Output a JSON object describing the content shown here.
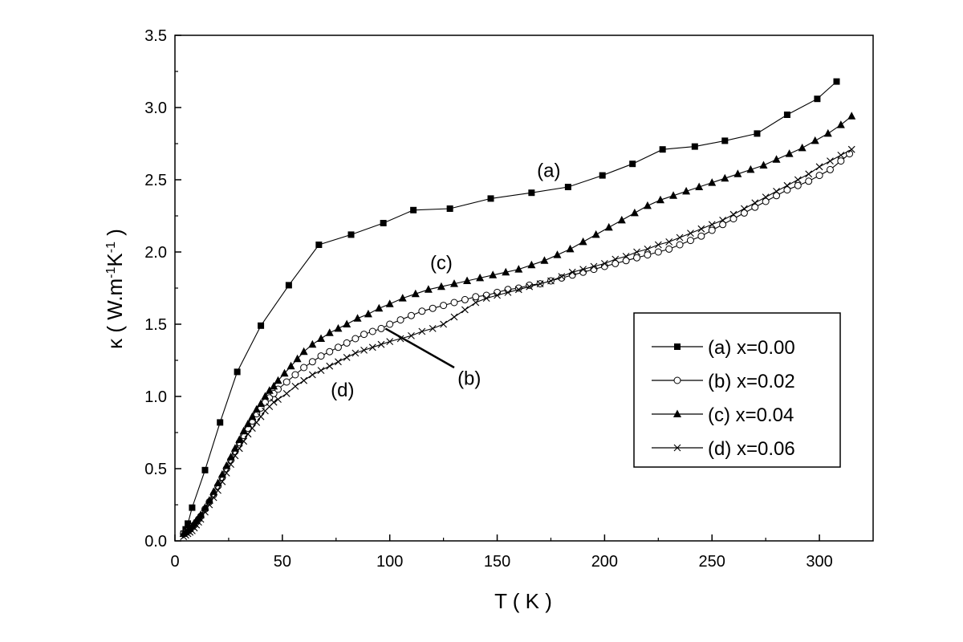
{
  "chart_data": {
    "type": "line",
    "xlabel": "T ( K )",
    "ylabel_main": "κ ( W.m",
    "ylabel_sup1": "-1",
    "ylabel_mid": "K",
    "ylabel_sup2": "-1",
    "ylabel_end": " )",
    "xlim": [
      0,
      325
    ],
    "ylim": [
      0,
      3.5
    ],
    "x_ticks": [
      0,
      50,
      100,
      150,
      200,
      250,
      300
    ],
    "y_ticks": [
      0.0,
      0.5,
      1.0,
      1.5,
      2.0,
      2.5,
      3.0,
      3.5
    ],
    "x_tick_labels": [
      "0",
      "50",
      "100",
      "150",
      "200",
      "250",
      "300"
    ],
    "y_tick_labels": [
      "0.0",
      "0.5",
      "1.0",
      "1.5",
      "2.0",
      "2.5",
      "3.0",
      "3.5"
    ],
    "grid": false,
    "legend_position": "right",
    "annotations": [
      {
        "text": "(a)",
        "x": 174,
        "y": 2.52
      },
      {
        "text": "(c)",
        "x": 124,
        "y": 1.88
      },
      {
        "text": "(b)",
        "x": 137,
        "y": 1.08
      },
      {
        "text": "(d)",
        "x": 78,
        "y": 1.0
      }
    ],
    "pointer_line": {
      "from": [
        98,
        1.47
      ],
      "to": [
        130,
        1.2
      ]
    },
    "series": [
      {
        "name": "(a) x=0.00",
        "marker": "square",
        "x": [
          4,
          5,
          6,
          8,
          14,
          21,
          29,
          40,
          53,
          67,
          82,
          97,
          111,
          128,
          147,
          166,
          183,
          199,
          213,
          227,
          242,
          256,
          271,
          285,
          299,
          308
        ],
        "y": [
          0.05,
          0.08,
          0.12,
          0.23,
          0.49,
          0.82,
          1.17,
          1.49,
          1.77,
          2.05,
          2.12,
          2.2,
          2.29,
          2.3,
          2.37,
          2.41,
          2.45,
          2.53,
          2.61,
          2.71,
          2.73,
          2.77,
          2.82,
          2.95,
          3.06,
          3.18
        ]
      },
      {
        "name": "(b) x=0.02",
        "marker": "circle",
        "x": [
          4,
          5,
          6,
          7,
          8,
          9,
          10,
          11,
          12,
          14,
          16,
          18,
          20,
          22,
          24,
          26,
          28,
          30,
          32,
          34,
          36,
          38,
          40,
          42,
          44,
          46,
          48,
          52,
          56,
          60,
          64,
          68,
          72,
          76,
          80,
          84,
          88,
          92,
          96,
          100,
          105,
          110,
          115,
          120,
          125,
          130,
          135,
          140,
          145,
          150,
          155,
          160,
          165,
          170,
          175,
          180,
          185,
          190,
          195,
          200,
          205,
          210,
          215,
          220,
          225,
          230,
          235,
          240,
          245,
          250,
          255,
          260,
          265,
          270,
          275,
          280,
          285,
          290,
          295,
          300,
          305,
          310,
          314
        ],
        "y": [
          0.05,
          0.06,
          0.07,
          0.08,
          0.1,
          0.11,
          0.13,
          0.15,
          0.17,
          0.22,
          0.27,
          0.32,
          0.38,
          0.44,
          0.5,
          0.56,
          0.62,
          0.68,
          0.73,
          0.78,
          0.83,
          0.88,
          0.92,
          0.96,
          0.99,
          1.02,
          1.05,
          1.1,
          1.15,
          1.2,
          1.24,
          1.28,
          1.31,
          1.34,
          1.37,
          1.4,
          1.43,
          1.45,
          1.47,
          1.5,
          1.53,
          1.56,
          1.59,
          1.61,
          1.63,
          1.65,
          1.67,
          1.69,
          1.7,
          1.72,
          1.74,
          1.75,
          1.77,
          1.78,
          1.8,
          1.82,
          1.84,
          1.86,
          1.88,
          1.9,
          1.92,
          1.94,
          1.96,
          1.98,
          2.0,
          2.02,
          2.05,
          2.08,
          2.11,
          2.15,
          2.19,
          2.23,
          2.27,
          2.31,
          2.35,
          2.39,
          2.43,
          2.46,
          2.49,
          2.53,
          2.57,
          2.63,
          2.68
        ]
      },
      {
        "name": "(c) x=0.04",
        "marker": "triangle",
        "x": [
          4,
          5,
          6,
          7,
          8,
          9,
          10,
          11,
          12,
          14,
          16,
          18,
          20,
          22,
          24,
          26,
          28,
          30,
          32,
          34,
          36,
          38,
          40,
          42,
          44,
          46,
          48,
          51,
          54,
          57,
          60,
          64,
          68,
          72,
          76,
          80,
          85,
          90,
          95,
          100,
          106,
          112,
          118,
          124,
          130,
          136,
          142,
          148,
          154,
          160,
          166,
          172,
          178,
          184,
          190,
          196,
          202,
          208,
          214,
          220,
          226,
          232,
          238,
          244,
          250,
          256,
          262,
          268,
          274,
          280,
          286,
          292,
          298,
          304,
          310,
          315
        ],
        "y": [
          0.05,
          0.06,
          0.07,
          0.09,
          0.1,
          0.12,
          0.14,
          0.16,
          0.18,
          0.23,
          0.28,
          0.34,
          0.4,
          0.46,
          0.52,
          0.58,
          0.64,
          0.7,
          0.76,
          0.81,
          0.86,
          0.91,
          0.95,
          1.0,
          1.04,
          1.07,
          1.11,
          1.16,
          1.21,
          1.26,
          1.31,
          1.36,
          1.4,
          1.44,
          1.47,
          1.5,
          1.54,
          1.57,
          1.61,
          1.64,
          1.68,
          1.71,
          1.74,
          1.76,
          1.78,
          1.8,
          1.82,
          1.84,
          1.86,
          1.88,
          1.91,
          1.94,
          1.98,
          2.02,
          2.07,
          2.12,
          2.17,
          2.22,
          2.27,
          2.32,
          2.36,
          2.39,
          2.42,
          2.45,
          2.48,
          2.51,
          2.54,
          2.57,
          2.6,
          2.64,
          2.68,
          2.72,
          2.77,
          2.82,
          2.88,
          2.94
        ]
      },
      {
        "name": "(d) x=0.06",
        "marker": "cross",
        "x": [
          4,
          5,
          6,
          7,
          8,
          9,
          10,
          11,
          12,
          14,
          16,
          18,
          20,
          22,
          24,
          26,
          28,
          30,
          32,
          34,
          36,
          38,
          40,
          42,
          44,
          46,
          48,
          52,
          56,
          60,
          64,
          68,
          72,
          76,
          80,
          84,
          88,
          92,
          96,
          100,
          105,
          110,
          115,
          120,
          125,
          130,
          135,
          140,
          145,
          150,
          155,
          160,
          165,
          170,
          175,
          180,
          185,
          190,
          195,
          200,
          205,
          210,
          215,
          220,
          225,
          230,
          235,
          240,
          245,
          250,
          255,
          260,
          265,
          270,
          275,
          280,
          285,
          290,
          295,
          300,
          305,
          310,
          315
        ],
        "y": [
          0.03,
          0.04,
          0.05,
          0.06,
          0.07,
          0.09,
          0.11,
          0.13,
          0.15,
          0.2,
          0.25,
          0.3,
          0.35,
          0.41,
          0.47,
          0.53,
          0.59,
          0.64,
          0.69,
          0.74,
          0.78,
          0.82,
          0.86,
          0.9,
          0.93,
          0.96,
          0.98,
          1.02,
          1.07,
          1.11,
          1.15,
          1.18,
          1.21,
          1.24,
          1.27,
          1.3,
          1.32,
          1.34,
          1.36,
          1.38,
          1.4,
          1.42,
          1.45,
          1.47,
          1.5,
          1.55,
          1.6,
          1.65,
          1.68,
          1.7,
          1.72,
          1.74,
          1.76,
          1.78,
          1.8,
          1.83,
          1.86,
          1.88,
          1.9,
          1.92,
          1.95,
          1.97,
          2.0,
          2.02,
          2.05,
          2.07,
          2.1,
          2.13,
          2.16,
          2.19,
          2.22,
          2.26,
          2.3,
          2.34,
          2.38,
          2.42,
          2.46,
          2.5,
          2.54,
          2.59,
          2.63,
          2.67,
          2.71
        ]
      }
    ]
  }
}
